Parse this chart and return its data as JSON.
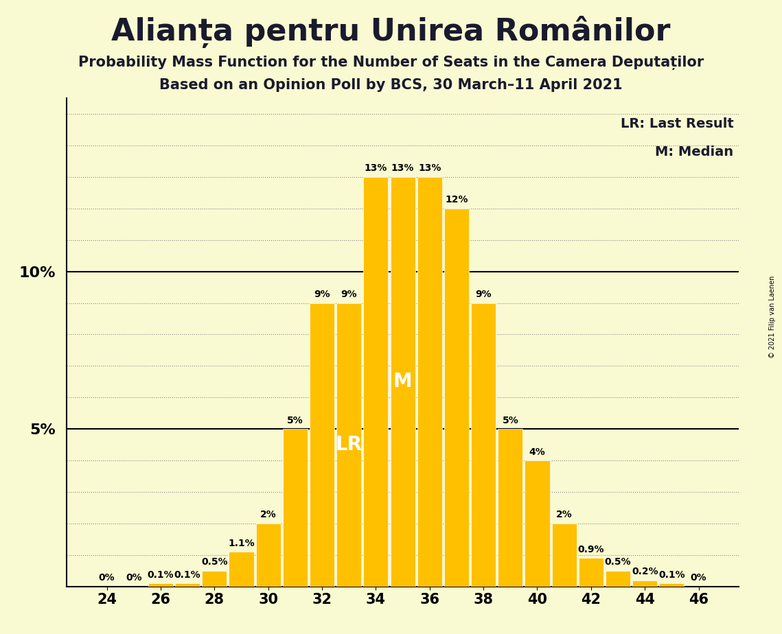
{
  "title": "Alianța pentru Unirea Românilor",
  "subtitle1": "Probability Mass Function for the Number of Seats in the Camera Deputaților",
  "subtitle2": "Based on an Opinion Poll by BCS, 30 March–11 April 2021",
  "copyright_text": "© 2021 Filip van Laenen",
  "seats": [
    24,
    25,
    26,
    27,
    28,
    29,
    30,
    31,
    32,
    33,
    34,
    35,
    36,
    37,
    38,
    39,
    40,
    41,
    42,
    43,
    44,
    45,
    46
  ],
  "probabilities": [
    0.0,
    0.0,
    0.1,
    0.1,
    0.5,
    1.1,
    2.0,
    5.0,
    9.0,
    9.0,
    13.0,
    13.0,
    13.0,
    12.0,
    9.0,
    5.0,
    4.0,
    2.0,
    0.9,
    0.5,
    0.2,
    0.1,
    0.0
  ],
  "bar_color": "#FFC000",
  "background_color": "#FAFAD2",
  "last_result_seat": 33,
  "median_seat": 35,
  "lr_label": "LR",
  "m_label": "M",
  "legend_lr": "LR: Last Result",
  "legend_m": "M: Median",
  "grid_color": "#888888",
  "bar_label_fontsize": 10,
  "title_fontsize": 32,
  "subtitle_fontsize": 15,
  "ymax": 15.5,
  "solid_lines": [
    5.0,
    10.0
  ],
  "dotted_lines": [
    1,
    2,
    3,
    4,
    6,
    7,
    8,
    9,
    11,
    12,
    13,
    14,
    15
  ]
}
